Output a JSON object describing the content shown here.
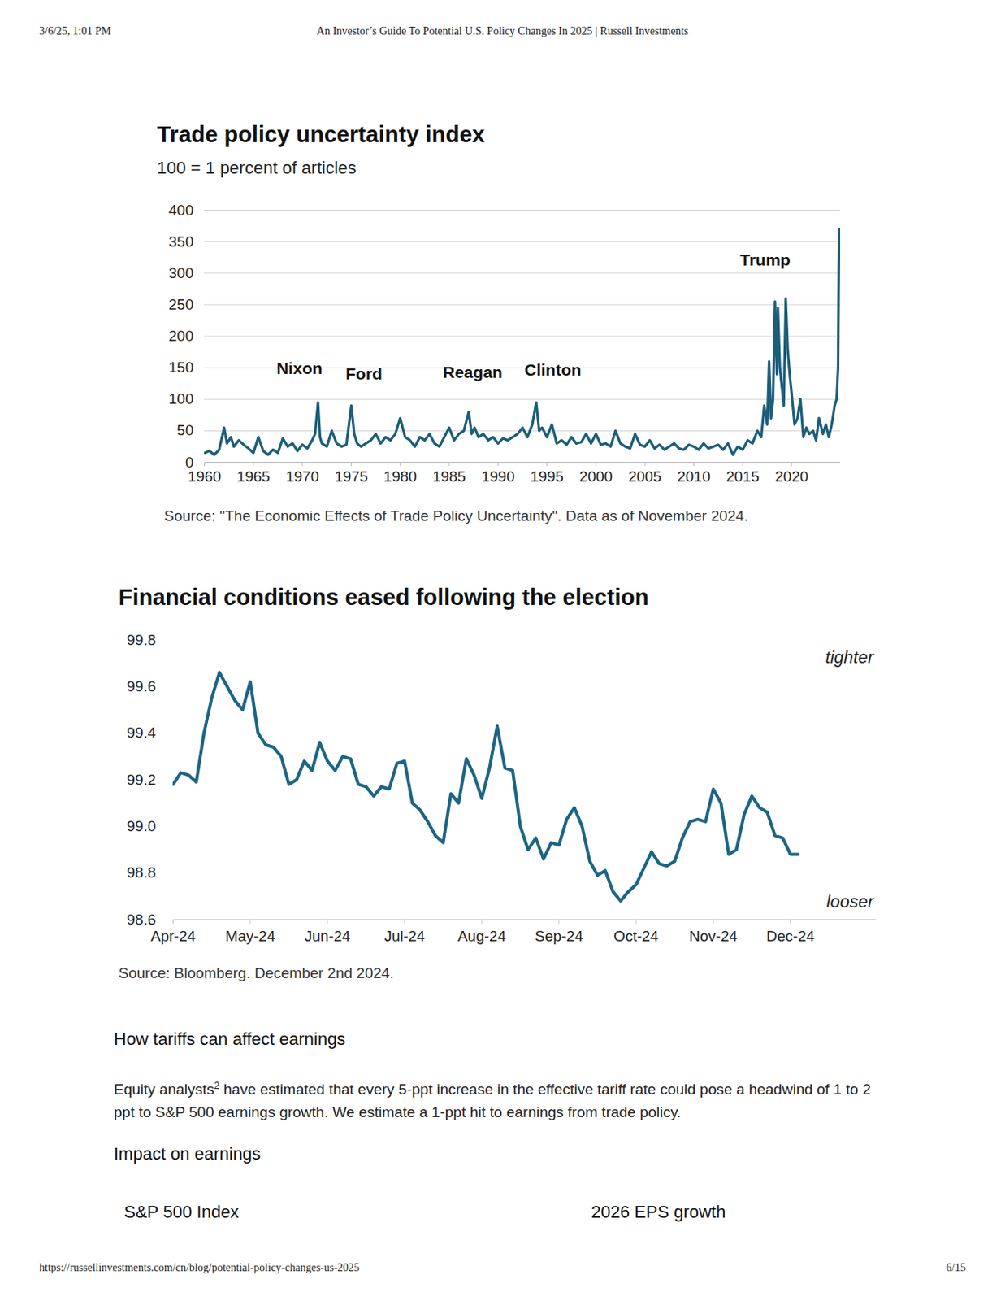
{
  "page": {
    "header": {
      "datetime": "3/6/25, 1:01 PM",
      "title": "An Investor’s Guide To Potential U.S. Policy Changes In 2025 | Russell Investments"
    },
    "footer": {
      "url": "https://russellinvestments.com/cn/blog/potential-policy-changes-us-2025",
      "page": "6/15"
    },
    "sections": [
      {
        "heading": "How tariffs can affect earnings",
        "paragraph": {
          "text": "Equity analysts",
          "sup": "2",
          "rest": " have estimated that every 5-ppt increase in the effective tariff rate could pose a headwind of 1 to 2 ppt to S&P 500 earnings growth. We estimate a 1-ppt hit to earnings from trade policy."
        }
      },
      {
        "heading": "Impact on earnings",
        "columns": [
          "S&P 500 Index",
          "2026 EPS growth"
        ]
      }
    ]
  },
  "chart_data": [
    {
      "type": "line",
      "title": "Trade policy uncertainty index",
      "subtitle": "100 = 1 percent of articles",
      "source": "Source: \"The Economic Effects of Trade Policy Uncertainty\". Data as of November 2024.",
      "x": [
        1960,
        1960.5,
        1961,
        1961.5,
        1962,
        1962.3,
        1962.7,
        1963,
        1963.5,
        1964,
        1964.5,
        1965,
        1965.5,
        1966,
        1966.5,
        1967,
        1967.5,
        1968,
        1968.5,
        1969,
        1969.5,
        1970,
        1970.5,
        1971,
        1971.3,
        1971.6,
        1971.8,
        1972,
        1972.5,
        1973,
        1973.5,
        1974,
        1974.5,
        1975,
        1975.3,
        1975.6,
        1976,
        1976.5,
        1977,
        1977.5,
        1978,
        1978.5,
        1979,
        1979.5,
        1980,
        1980.5,
        1981,
        1981.5,
        1982,
        1982.5,
        1983,
        1983.5,
        1984,
        1984.5,
        1985,
        1985.5,
        1986,
        1986.5,
        1987,
        1987.3,
        1987.6,
        1988,
        1988.5,
        1989,
        1989.5,
        1990,
        1990.5,
        1991,
        1991.5,
        1992,
        1992.5,
        1993,
        1993.5,
        1993.9,
        1994.2,
        1994.5,
        1995,
        1995.5,
        1996,
        1996.5,
        1997,
        1997.5,
        1998,
        1998.5,
        1999,
        1999.5,
        2000,
        2000.5,
        2001,
        2001.5,
        2002,
        2002.5,
        2003,
        2003.5,
        2004,
        2004.5,
        2005,
        2005.5,
        2006,
        2006.5,
        2007,
        2007.5,
        2008,
        2008.5,
        2009,
        2009.5,
        2010,
        2010.5,
        2011,
        2011.5,
        2012,
        2012.5,
        2013,
        2013.5,
        2014,
        2014.5,
        2015,
        2015.5,
        2016,
        2016.5,
        2016.9,
        2017.2,
        2017.5,
        2017.7,
        2017.9,
        2018.1,
        2018.3,
        2018.5,
        2018.6,
        2018.8,
        2019,
        2019.2,
        2019.4,
        2019.6,
        2019.8,
        2020,
        2020.3,
        2020.6,
        2020.9,
        2021.2,
        2021.5,
        2021.8,
        2022.2,
        2022.5,
        2022.8,
        2023.2,
        2023.5,
        2023.8,
        2024.1,
        2024.4,
        2024.6,
        2024.75,
        2024.85
      ],
      "values": [
        15,
        18,
        12,
        20,
        55,
        30,
        40,
        25,
        35,
        28,
        22,
        15,
        40,
        18,
        12,
        20,
        15,
        38,
        25,
        30,
        18,
        28,
        22,
        35,
        45,
        95,
        40,
        30,
        25,
        50,
        30,
        25,
        28,
        90,
        45,
        30,
        25,
        30,
        35,
        45,
        30,
        40,
        35,
        45,
        70,
        40,
        35,
        25,
        40,
        35,
        45,
        30,
        25,
        40,
        55,
        35,
        45,
        50,
        80,
        45,
        55,
        40,
        45,
        35,
        40,
        30,
        38,
        35,
        40,
        45,
        55,
        40,
        60,
        95,
        50,
        55,
        40,
        60,
        30,
        35,
        28,
        40,
        30,
        32,
        45,
        30,
        45,
        28,
        30,
        25,
        50,
        30,
        25,
        22,
        45,
        28,
        25,
        35,
        22,
        28,
        20,
        25,
        30,
        22,
        20,
        28,
        25,
        20,
        30,
        22,
        25,
        28,
        20,
        30,
        12,
        25,
        20,
        35,
        30,
        50,
        40,
        90,
        60,
        160,
        70,
        100,
        255,
        140,
        245,
        150,
        120,
        90,
        260,
        180,
        140,
        110,
        60,
        70,
        100,
        40,
        55,
        45,
        50,
        35,
        70,
        45,
        60,
        40,
        60,
        90,
        100,
        150,
        370
      ],
      "color": "#1b5e7a",
      "xlim": [
        1960,
        2025
      ],
      "xticks": [
        1960,
        1965,
        1970,
        1975,
        1980,
        1985,
        1990,
        1995,
        2000,
        2005,
        2010,
        2015,
        2020
      ],
      "ylim": [
        0,
        400
      ],
      "yticks": [
        0,
        50,
        100,
        150,
        200,
        250,
        300,
        350,
        400
      ],
      "grid": true,
      "annotations": [
        {
          "text": "Nixon",
          "x": 1969.7,
          "y": 148
        },
        {
          "text": "Ford",
          "x": 1976.3,
          "y": 140
        },
        {
          "text": "Reagan",
          "x": 1987.4,
          "y": 142
        },
        {
          "text": "Clinton",
          "x": 1995.6,
          "y": 146
        },
        {
          "text": "Trump",
          "x": 2017.3,
          "y": 320
        }
      ]
    },
    {
      "type": "line",
      "title": "Financial conditions eased following the election",
      "source": "Source: Bloomberg. December 2nd 2024.",
      "categories": [
        "Apr-24",
        null,
        null,
        null,
        null,
        null,
        null,
        null,
        null,
        null,
        "May-24",
        null,
        null,
        null,
        null,
        null,
        null,
        null,
        null,
        null,
        "Jun-24",
        null,
        null,
        null,
        null,
        null,
        null,
        null,
        null,
        null,
        "Jul-24",
        null,
        null,
        null,
        null,
        null,
        null,
        null,
        null,
        null,
        "Aug-24",
        null,
        null,
        null,
        null,
        null,
        null,
        null,
        null,
        null,
        "Sep-24",
        null,
        null,
        null,
        null,
        null,
        null,
        null,
        null,
        null,
        "Oct-24",
        null,
        null,
        null,
        null,
        null,
        null,
        null,
        null,
        null,
        "Nov-24",
        null,
        null,
        null,
        null,
        null,
        null,
        null,
        null,
        null,
        "Dec-24",
        null
      ],
      "values": [
        99.18,
        99.23,
        99.22,
        99.19,
        99.4,
        99.55,
        99.66,
        99.6,
        99.54,
        99.5,
        99.62,
        99.4,
        99.35,
        99.34,
        99.3,
        99.18,
        99.2,
        99.28,
        99.24,
        99.36,
        99.28,
        99.24,
        99.3,
        99.29,
        99.18,
        99.17,
        99.13,
        99.17,
        99.16,
        99.27,
        99.28,
        99.1,
        99.07,
        99.02,
        98.96,
        98.93,
        99.14,
        99.1,
        99.29,
        99.22,
        99.12,
        99.25,
        99.43,
        99.25,
        99.24,
        99.0,
        98.9,
        98.95,
        98.86,
        98.93,
        98.92,
        99.03,
        99.08,
        99.0,
        98.85,
        98.79,
        98.81,
        98.72,
        98.68,
        98.72,
        98.75,
        98.82,
        98.89,
        98.84,
        98.83,
        98.85,
        98.95,
        99.02,
        99.03,
        99.02,
        99.16,
        99.1,
        98.88,
        98.9,
        99.05,
        99.13,
        99.08,
        99.06,
        98.96,
        98.95,
        98.88,
        98.88
      ],
      "color": "#1b6585",
      "ylim": [
        98.6,
        99.8
      ],
      "yticks": [
        98.6,
        98.8,
        {
          "value": 99,
          "label": "99.0"
        },
        99.2,
        99.4,
        99.6,
        99.8
      ],
      "grid": false,
      "annotations": [
        "tighter",
        "looser"
      ]
    }
  ]
}
